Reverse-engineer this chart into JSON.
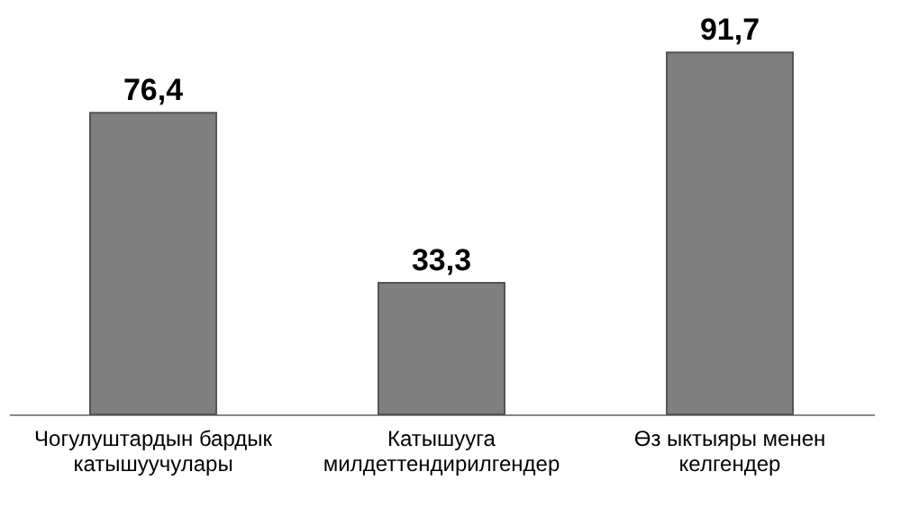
{
  "chart_data": {
    "type": "bar",
    "categories": [
      "Чогулуштардын бардык катышуучулары",
      "Катышууга милдеттендирилгендер",
      "Өз ыктыяры менен келгендер"
    ],
    "values": [
      76.4,
      33.3,
      91.7
    ],
    "value_labels": [
      "76,4",
      "33,3",
      "91,7"
    ],
    "color": "#7f7f7f",
    "grid": false
  }
}
